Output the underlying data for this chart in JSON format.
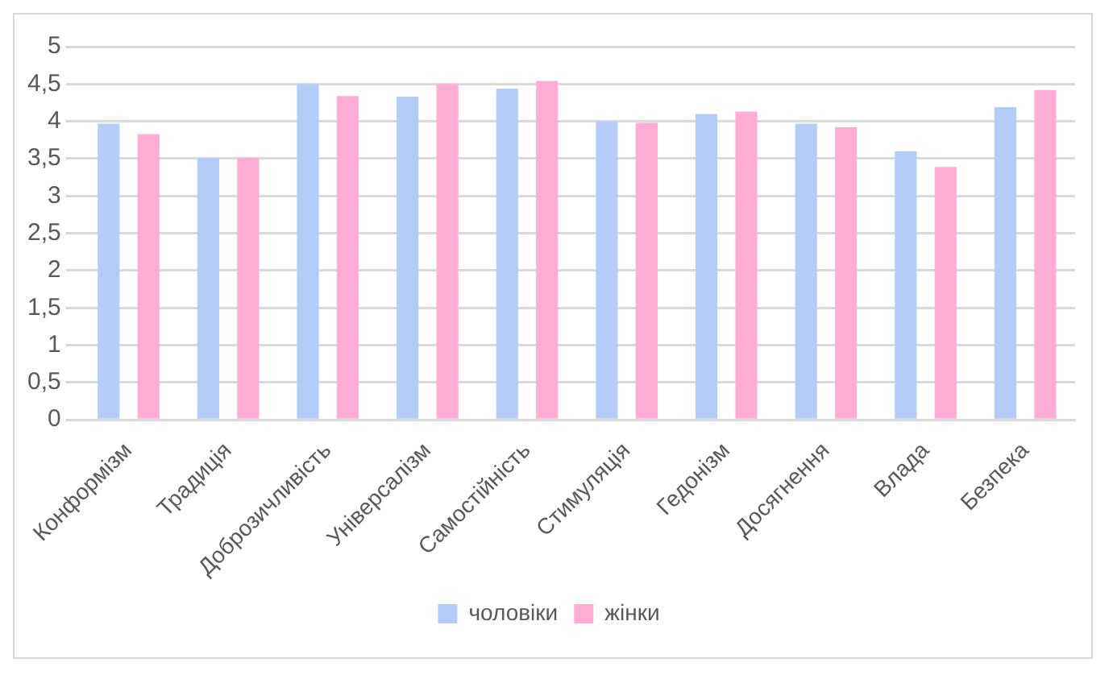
{
  "chart_data": {
    "type": "bar",
    "categories": [
      "Конформізм",
      "Традиція",
      "Доброзичливість",
      "Універсалізм",
      "Самостійність",
      "Стимуляція",
      "Гедонізм",
      "Досягнення",
      "Влада",
      "Безпека"
    ],
    "series": [
      {
        "name": "чоловіки",
        "color": "#b4cdf8",
        "values": [
          3.97,
          3.51,
          4.5,
          4.33,
          4.44,
          4.0,
          4.1,
          3.97,
          3.6,
          4.19
        ]
      },
      {
        "name": "жінки",
        "color": "#ffadd6",
        "values": [
          3.83,
          3.51,
          4.34,
          4.5,
          4.54,
          3.98,
          4.13,
          3.92,
          3.39,
          4.42
        ]
      }
    ],
    "ylim": [
      0,
      5
    ],
    "yticks": [
      0,
      {
        "value": 0.5,
        "label": "0,5"
      },
      1,
      {
        "value": 1.5,
        "label": "1,5"
      },
      2,
      {
        "value": 2.5,
        "label": "2,5"
      },
      3,
      {
        "value": 3.5,
        "label": "3,5"
      },
      4,
      {
        "value": 4.5,
        "label": "4,5"
      },
      5
    ],
    "grid": "y",
    "legend": "bottom"
  }
}
